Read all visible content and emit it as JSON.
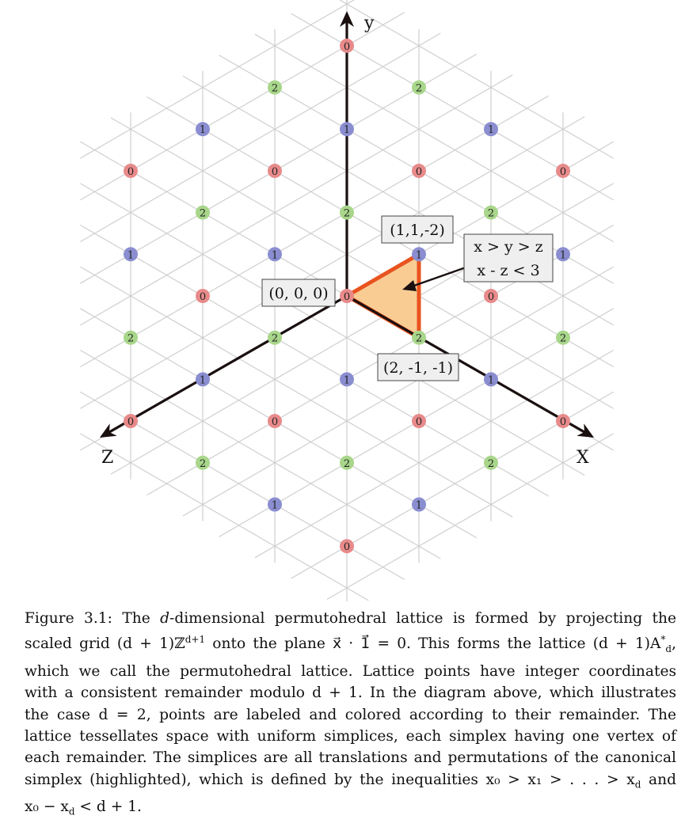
{
  "diagram": {
    "axes": {
      "x": "X",
      "y": "y",
      "z": "Z"
    },
    "points": [
      {
        "u": 0,
        "v": 6,
        "label": "0"
      },
      {
        "u": -2,
        "v": 5,
        "label": "2"
      },
      {
        "u": 2,
        "v": 5,
        "label": "2"
      },
      {
        "u": -4,
        "v": 4,
        "label": "1"
      },
      {
        "u": 0,
        "v": 4,
        "label": "1"
      },
      {
        "u": 4,
        "v": 4,
        "label": "1"
      },
      {
        "u": -6,
        "v": 3,
        "label": "0"
      },
      {
        "u": -2,
        "v": 3,
        "label": "0"
      },
      {
        "u": 2,
        "v": 3,
        "label": "0"
      },
      {
        "u": 6,
        "v": 3,
        "label": "0"
      },
      {
        "u": -4,
        "v": 2,
        "label": "2"
      },
      {
        "u": 0,
        "v": 2,
        "label": "2"
      },
      {
        "u": 4,
        "v": 2,
        "label": "2"
      },
      {
        "u": -6,
        "v": 1,
        "label": "1"
      },
      {
        "u": -2,
        "v": 1,
        "label": "1"
      },
      {
        "u": 2,
        "v": 1,
        "label": "1"
      },
      {
        "u": 6,
        "v": 1,
        "label": "1"
      },
      {
        "u": -4,
        "v": 0,
        "label": "0"
      },
      {
        "u": 0,
        "v": 0,
        "label": "0"
      },
      {
        "u": 4,
        "v": 0,
        "label": "0"
      },
      {
        "u": -6,
        "v": -1,
        "label": "2"
      },
      {
        "u": -2,
        "v": -1,
        "label": "2"
      },
      {
        "u": 2,
        "v": -1,
        "label": "2"
      },
      {
        "u": 6,
        "v": -1,
        "label": "2"
      },
      {
        "u": -4,
        "v": -2,
        "label": "1"
      },
      {
        "u": 0,
        "v": -2,
        "label": "1"
      },
      {
        "u": 4,
        "v": -2,
        "label": "1"
      },
      {
        "u": -6,
        "v": -3,
        "label": "0"
      },
      {
        "u": -2,
        "v": -3,
        "label": "0"
      },
      {
        "u": 2,
        "v": -3,
        "label": "0"
      },
      {
        "u": 6,
        "v": -3,
        "label": "0"
      },
      {
        "u": -4,
        "v": -4,
        "label": "2"
      },
      {
        "u": 0,
        "v": -4,
        "label": "2"
      },
      {
        "u": 4,
        "v": -4,
        "label": "2"
      },
      {
        "u": -2,
        "v": -5,
        "label": "1"
      },
      {
        "u": 2,
        "v": -5,
        "label": "1"
      },
      {
        "u": 0,
        "v": -6,
        "label": "0"
      }
    ],
    "remainder_colors": {
      "0": "#e88a8a",
      "1": "#8a8ed0",
      "2": "#a8d68a"
    },
    "simplex_fill": "#f9cc94",
    "simplex_stroke": "#e8531f",
    "boxes": {
      "origin": "(0, 0, 0)",
      "vertex_top": "(1,1,-2)",
      "vertex_bottom": "(2, -1, -1)",
      "inequality_line1": "x > y > z",
      "inequality_line2": "x - z < 3"
    }
  },
  "caption": {
    "label": "Figure 3.1:",
    "l1a": "The ",
    "l1var": "d",
    "l1b": "-dimensional permutohedral lattice is formed by projecting the",
    "l2": "scaled grid (d + 1)ℤ",
    "l2sup": "d+1",
    "l2b": " onto the plane x⃗ · 1⃗ = 0. This forms the lattice (d + 1)A",
    "l2sup2": "*",
    "l2sub2": "d",
    "l2c": ",",
    "l3": "which we call the permutohedral lattice. Lattice points have integer coordinates",
    "l4": "with a consistent remainder modulo d + 1. In the diagram above, which illustrates",
    "l5": "the case d = 2, points are labeled and colored according to their remainder. The",
    "l6": "lattice tessellates space with uniform simplices, each simplex having one vertex of",
    "l7": "each remainder. The simplices are all translations and permutations of the canonical",
    "l8": "simplex (highlighted), which is defined by the inequalities x₀ > x₁ > . . . > x",
    "l8sub": "d",
    "l8b": " and",
    "l9": "x₀ − x",
    "l9sub": "d",
    "l9b": " < d + 1."
  }
}
